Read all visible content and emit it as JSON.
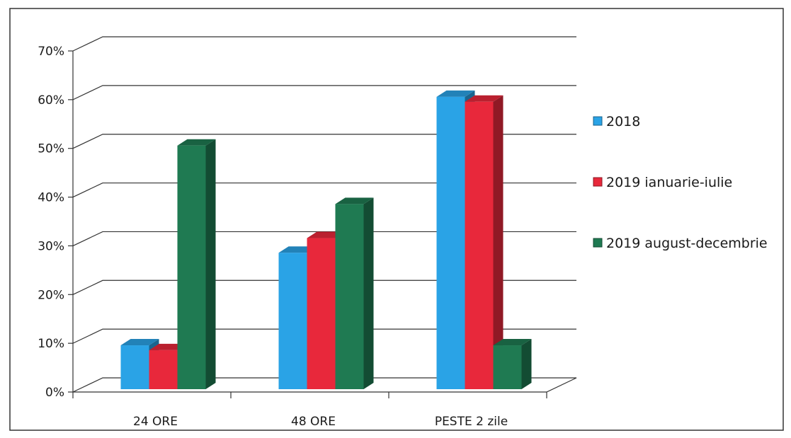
{
  "chart_data": {
    "type": "bar",
    "style": "3d-clustered-column",
    "categories": [
      "24 ORE",
      "48 ORE",
      "PESTE 2 zile"
    ],
    "series": [
      {
        "name": "2018",
        "values": [
          9,
          28,
          60
        ],
        "color": "#2aa3e6"
      },
      {
        "name": "2019 ianuarie-iulie",
        "values": [
          8,
          31,
          59
        ],
        "color": "#e8283b"
      },
      {
        "name": "2019 august-decembrie",
        "values": [
          50,
          38,
          9
        ],
        "color": "#1f7a52"
      }
    ],
    "yticks": [
      "0%",
      "10%",
      "20%",
      "30%",
      "40%",
      "50%",
      "60%",
      "70%"
    ],
    "ylim": [
      0,
      70
    ],
    "y_unit": "%",
    "grid": true,
    "legend_position": "right",
    "title": "",
    "xlabel": "",
    "ylabel": ""
  }
}
